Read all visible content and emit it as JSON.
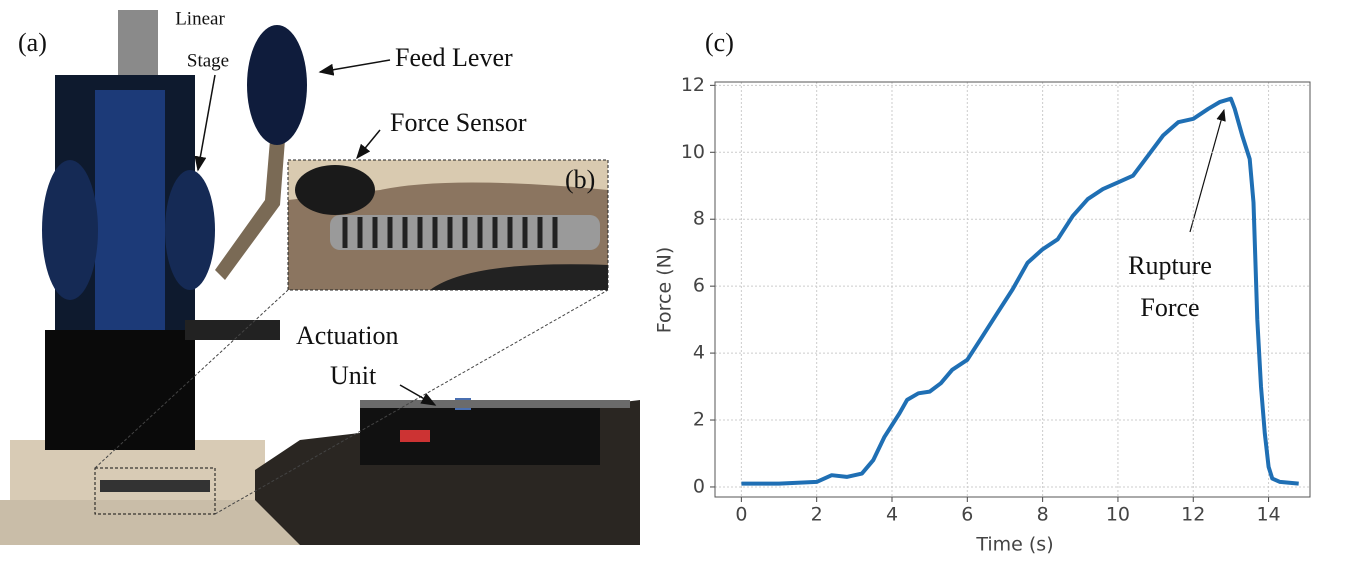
{
  "panel_a": {
    "label": "(a)",
    "linear_stage": [
      "Linear",
      "Stage"
    ],
    "feed_lever": "Feed Lever",
    "force_sensor": "Force Sensor",
    "actuation_unit": [
      "Actuation",
      "Unit"
    ]
  },
  "panel_b": {
    "label": "(b)"
  },
  "panel_c": {
    "label": "(c)"
  },
  "chart_data": {
    "type": "line",
    "x_label": "Time (s)",
    "y_label": "Force (N)",
    "annotation": [
      "Rupture",
      "Force"
    ],
    "x": [
      0,
      1,
      2,
      2.4,
      2.8,
      3.2,
      3.5,
      3.8,
      4.2,
      4.4,
      4.7,
      5.0,
      5.3,
      5.6,
      6.0,
      6.4,
      6.8,
      7.2,
      7.6,
      8.0,
      8.4,
      8.8,
      9.2,
      9.6,
      10.0,
      10.4,
      10.8,
      11.2,
      11.6,
      12.0,
      12.4,
      12.7,
      13.0,
      13.1,
      13.3,
      13.5,
      13.6,
      13.7,
      13.8,
      13.9,
      14.0,
      14.1,
      14.3,
      14.8
    ],
    "series": [
      {
        "color": "#1f6fb4",
        "values": [
          0.1,
          0.1,
          0.15,
          0.35,
          0.3,
          0.4,
          0.8,
          1.5,
          2.2,
          2.6,
          2.8,
          2.85,
          3.1,
          3.5,
          3.8,
          4.5,
          5.2,
          5.9,
          6.7,
          7.1,
          7.4,
          8.1,
          8.6,
          8.9,
          9.1,
          9.3,
          9.9,
          10.5,
          10.9,
          11.0,
          11.3,
          11.5,
          11.6,
          11.3,
          10.5,
          9.8,
          8.5,
          5.0,
          3.0,
          1.6,
          0.6,
          0.25,
          0.15,
          0.1
        ]
      }
    ],
    "xlim": [
      -0.7,
      15.1
    ],
    "ylim": [
      -0.3,
      12.1
    ],
    "xticks": [
      0,
      2,
      4,
      6,
      8,
      10,
      12,
      14
    ],
    "yticks": [
      0,
      2,
      4,
      6,
      8,
      10,
      12
    ],
    "grid": true
  }
}
